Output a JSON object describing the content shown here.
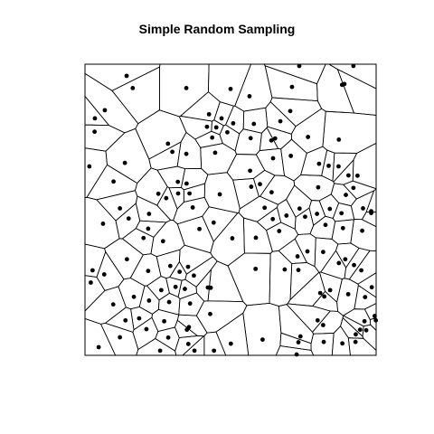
{
  "chart_data": {
    "type": "scatter",
    "title": "Simple Random Sampling",
    "xlabel": "",
    "ylabel": "",
    "xlim": [
      0,
      1
    ],
    "ylim": [
      0,
      1
    ],
    "grid": false,
    "overlay": "voronoi-tessellation",
    "colors": {
      "points": "#000000",
      "edges": "#000000",
      "background": "#ffffff"
    },
    "points": [
      [
        0.143,
        0.96
      ],
      [
        0.164,
        0.918
      ],
      [
        0.348,
        0.918
      ],
      [
        0.5,
        0.915
      ],
      [
        0.736,
        0.994
      ],
      [
        0.922,
        0.994
      ],
      [
        0.891,
        0.932
      ],
      [
        0.883,
        0.929
      ],
      [
        0.565,
        0.89
      ],
      [
        0.711,
        0.922
      ],
      [
        0.068,
        0.842
      ],
      [
        0.034,
        0.814
      ],
      [
        0.426,
        0.828
      ],
      [
        0.469,
        0.814
      ],
      [
        0.509,
        0.797
      ],
      [
        0.58,
        0.795
      ],
      [
        0.671,
        0.804
      ],
      [
        0.705,
        0.839
      ],
      [
        0.033,
        0.768
      ],
      [
        0.419,
        0.785
      ],
      [
        0.451,
        0.783
      ],
      [
        0.437,
        0.748
      ],
      [
        0.489,
        0.766
      ],
      [
        0.569,
        0.746
      ],
      [
        0.64,
        0.738
      ],
      [
        0.653,
        0.745
      ],
      [
        0.766,
        0.75
      ],
      [
        0.872,
        0.741
      ],
      [
        0.285,
        0.727
      ],
      [
        0.3,
        0.699
      ],
      [
        0.348,
        0.692
      ],
      [
        0.447,
        0.696
      ],
      [
        0.015,
        0.649
      ],
      [
        0.137,
        0.661
      ],
      [
        0.567,
        0.634
      ],
      [
        0.646,
        0.677
      ],
      [
        0.707,
        0.685
      ],
      [
        0.804,
        0.658
      ],
      [
        0.837,
        0.651
      ],
      [
        0.871,
        0.649
      ],
      [
        0.905,
        0.618
      ],
      [
        0.936,
        0.617
      ],
      [
        0.098,
        0.597
      ],
      [
        0.319,
        0.596
      ],
      [
        0.349,
        0.59
      ],
      [
        0.359,
        0.556
      ],
      [
        0.32,
        0.556
      ],
      [
        0.463,
        0.553
      ],
      [
        0.571,
        0.579
      ],
      [
        0.601,
        0.588
      ],
      [
        0.641,
        0.56
      ],
      [
        0.801,
        0.577
      ],
      [
        0.922,
        0.575
      ],
      [
        0.252,
        0.555
      ],
      [
        0.12,
        0.505
      ],
      [
        0.37,
        0.508
      ],
      [
        0.22,
        0.486
      ],
      [
        0.279,
        0.54
      ],
      [
        0.617,
        0.507
      ],
      [
        0.737,
        0.504
      ],
      [
        0.797,
        0.486
      ],
      [
        0.841,
        0.503
      ],
      [
        0.881,
        0.488
      ],
      [
        0.983,
        0.489
      ],
      [
        0.955,
        0.505
      ],
      [
        0.896,
        0.551
      ],
      [
        0.15,
        0.47
      ],
      [
        0.217,
        0.435
      ],
      [
        0.442,
        0.456
      ],
      [
        0.645,
        0.468
      ],
      [
        0.692,
        0.48
      ],
      [
        0.756,
        0.476
      ],
      [
        0.826,
        0.448
      ],
      [
        0.886,
        0.437
      ],
      [
        0.983,
        0.495
      ],
      [
        0.062,
        0.452
      ],
      [
        0.201,
        0.403
      ],
      [
        0.393,
        0.434
      ],
      [
        0.506,
        0.402
      ],
      [
        0.587,
        0.404
      ],
      [
        0.667,
        0.427
      ],
      [
        0.952,
        0.428
      ],
      [
        0.268,
        0.392
      ],
      [
        0.144,
        0.33
      ],
      [
        0.293,
        0.307
      ],
      [
        0.325,
        0.287
      ],
      [
        0.374,
        0.274
      ],
      [
        0.354,
        0.304
      ],
      [
        0.586,
        0.297
      ],
      [
        0.73,
        0.34
      ],
      [
        0.764,
        0.357
      ],
      [
        0.818,
        0.355
      ],
      [
        0.894,
        0.33
      ],
      [
        0.924,
        0.31
      ],
      [
        0.026,
        0.292
      ],
      [
        0.066,
        0.278
      ],
      [
        0.217,
        0.29
      ],
      [
        0.311,
        0.235
      ],
      [
        0.343,
        0.228
      ],
      [
        0.422,
        0.233
      ],
      [
        0.686,
        0.295
      ],
      [
        0.733,
        0.293
      ],
      [
        0.872,
        0.317
      ],
      [
        0.949,
        0.292
      ],
      [
        0.985,
        0.234
      ],
      [
        0.02,
        0.25
      ],
      [
        0.262,
        0.224
      ],
      [
        0.289,
        0.183
      ],
      [
        0.168,
        0.201
      ],
      [
        0.097,
        0.175
      ],
      [
        0.22,
        0.188
      ],
      [
        0.361,
        0.178
      ],
      [
        0.432,
        0.232
      ],
      [
        0.842,
        0.224
      ],
      [
        0.822,
        0.202
      ],
      [
        0.808,
        0.214
      ],
      [
        0.904,
        0.21
      ],
      [
        0.962,
        0.2
      ],
      [
        0.139,
        0.12
      ],
      [
        0.186,
        0.127
      ],
      [
        0.272,
        0.117
      ],
      [
        0.35,
        0.088
      ],
      [
        0.357,
        0.097
      ],
      [
        0.43,
        0.142
      ],
      [
        0.799,
        0.12
      ],
      [
        0.818,
        0.104
      ],
      [
        0.93,
        0.072
      ],
      [
        0.945,
        0.088
      ],
      [
        0.211,
        0.09
      ],
      [
        0.286,
        0.061
      ],
      [
        0.376,
        0.016
      ],
      [
        0.443,
        0.016
      ],
      [
        0.501,
        0.04
      ],
      [
        0.61,
        0.054
      ],
      [
        0.727,
        0.003
      ],
      [
        0.047,
        0.028
      ],
      [
        0.12,
        0.062
      ],
      [
        0.258,
        0.016
      ],
      [
        0.355,
        0.039
      ],
      [
        0.733,
        0.045
      ],
      [
        0.74,
        0.065
      ],
      [
        0.82,
        0.046
      ],
      [
        0.884,
        0.041
      ],
      [
        0.929,
        0.046
      ],
      [
        0.96,
        0.117
      ],
      [
        0.966,
        0.086
      ],
      [
        0.995,
        0.135
      ],
      [
        0.999,
        0.12
      ]
    ]
  }
}
